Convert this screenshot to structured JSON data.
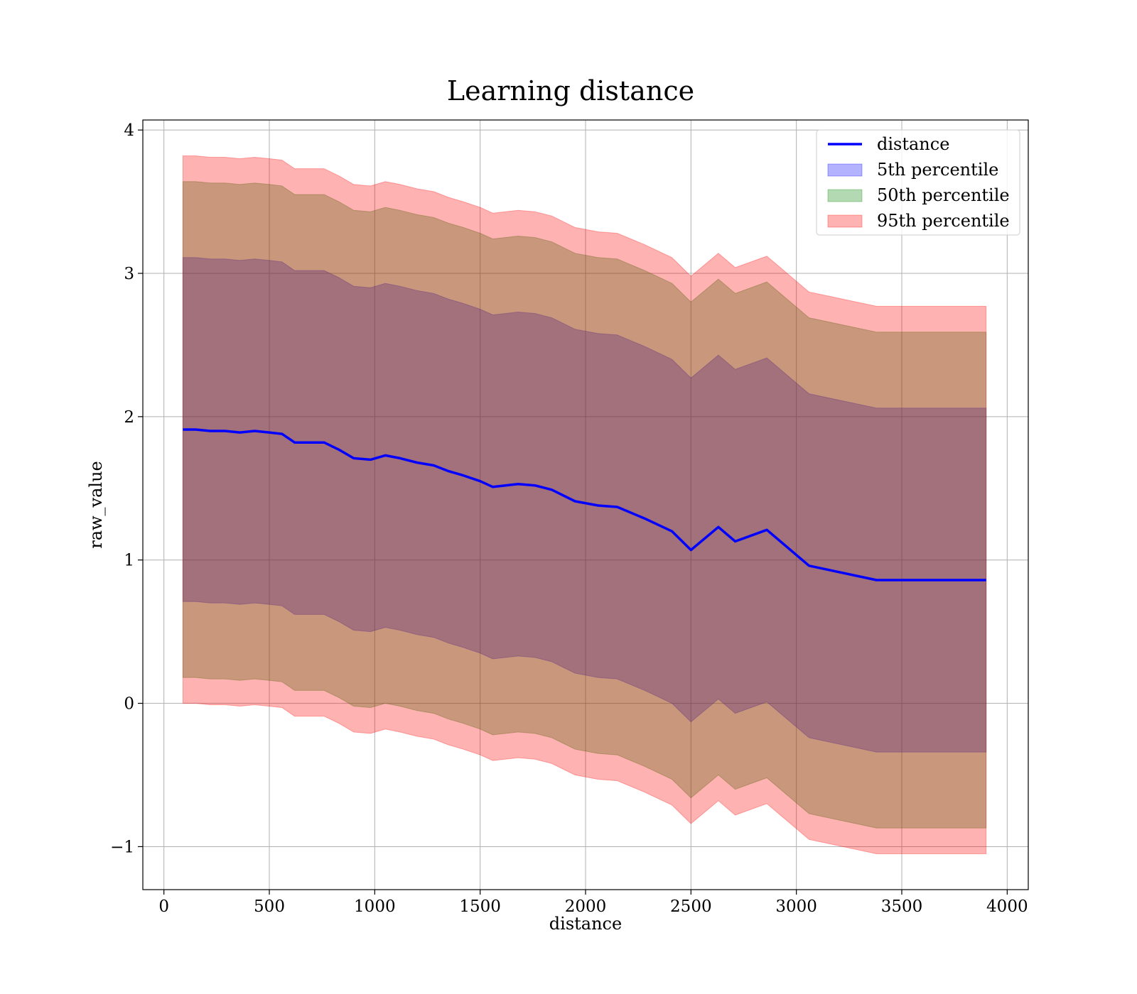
{
  "chart_data": {
    "type": "area",
    "title": "Learning distance",
    "xlabel": "distance",
    "ylabel": "raw_value",
    "xlim": [
      -100,
      4100
    ],
    "ylim": [
      -1.3,
      4.07
    ],
    "x_ticks": [
      0,
      500,
      1000,
      1500,
      2000,
      2500,
      3000,
      3500,
      4000
    ],
    "x_tick_labels": [
      "0",
      "500",
      "1000",
      "1500",
      "2000",
      "2500",
      "3000",
      "3500",
      "4000"
    ],
    "y_ticks": [
      -1,
      0,
      1,
      2,
      3,
      4
    ],
    "y_tick_labels": [
      "−1",
      "0",
      "1",
      "2",
      "3",
      "4"
    ],
    "grid": true,
    "legend_position": "top-right",
    "legend": [
      {
        "label": "distance",
        "kind": "line",
        "color": "#0000ff"
      },
      {
        "label": "5th percentile",
        "kind": "patch",
        "color": "#0000ff"
      },
      {
        "label": "50th percentile",
        "kind": "patch",
        "color": "#008000"
      },
      {
        "label": "95th percentile",
        "kind": "patch",
        "color": "#ff0000"
      }
    ],
    "x": [
      90,
      150,
      220,
      290,
      360,
      430,
      500,
      560,
      620,
      700,
      760,
      830,
      900,
      980,
      1050,
      1120,
      1200,
      1280,
      1350,
      1420,
      1500,
      1560,
      1680,
      1760,
      1840,
      1950,
      2060,
      2150,
      2280,
      2410,
      2500,
      2630,
      2710,
      2860,
      3060,
      3380,
      3900
    ],
    "series": [
      {
        "name": "distance",
        "kind": "line",
        "color": "#0000ff",
        "values": [
          1.91,
          1.91,
          1.9,
          1.9,
          1.89,
          1.9,
          1.89,
          1.88,
          1.82,
          1.82,
          1.82,
          1.77,
          1.71,
          1.7,
          1.73,
          1.71,
          1.68,
          1.66,
          1.62,
          1.59,
          1.55,
          1.51,
          1.53,
          1.52,
          1.49,
          1.41,
          1.38,
          1.37,
          1.29,
          1.2,
          1.07,
          1.23,
          1.13,
          1.21,
          0.96,
          0.86,
          0.86
        ]
      },
      {
        "name": "5th percentile",
        "kind": "band",
        "color": "#0000ff",
        "lower": [
          0.71,
          0.71,
          0.7,
          0.7,
          0.69,
          0.7,
          0.69,
          0.68,
          0.62,
          0.62,
          0.62,
          0.57,
          0.51,
          0.5,
          0.53,
          0.51,
          0.48,
          0.46,
          0.42,
          0.39,
          0.35,
          0.31,
          0.33,
          0.32,
          0.29,
          0.21,
          0.18,
          0.17,
          0.09,
          0.0,
          -0.13,
          0.03,
          -0.07,
          0.01,
          -0.24,
          -0.34,
          -0.34
        ],
        "upper": [
          3.11,
          3.11,
          3.1,
          3.1,
          3.09,
          3.1,
          3.09,
          3.08,
          3.02,
          3.02,
          3.02,
          2.97,
          2.91,
          2.9,
          2.93,
          2.91,
          2.88,
          2.86,
          2.82,
          2.79,
          2.75,
          2.71,
          2.73,
          2.72,
          2.69,
          2.61,
          2.58,
          2.57,
          2.49,
          2.4,
          2.27,
          2.43,
          2.33,
          2.41,
          2.16,
          2.06,
          2.06
        ]
      },
      {
        "name": "50th percentile",
        "kind": "band",
        "color": "#008000",
        "lower": [
          0.18,
          0.18,
          0.17,
          0.17,
          0.16,
          0.17,
          0.16,
          0.15,
          0.09,
          0.09,
          0.09,
          0.04,
          -0.02,
          -0.03,
          0.0,
          -0.02,
          -0.05,
          -0.07,
          -0.11,
          -0.14,
          -0.18,
          -0.22,
          -0.2,
          -0.21,
          -0.24,
          -0.32,
          -0.35,
          -0.36,
          -0.44,
          -0.53,
          -0.66,
          -0.5,
          -0.6,
          -0.52,
          -0.77,
          -0.87,
          -0.87
        ],
        "upper": [
          3.64,
          3.64,
          3.63,
          3.63,
          3.62,
          3.63,
          3.62,
          3.61,
          3.55,
          3.55,
          3.55,
          3.5,
          3.44,
          3.43,
          3.46,
          3.44,
          3.41,
          3.39,
          3.35,
          3.32,
          3.28,
          3.24,
          3.26,
          3.25,
          3.22,
          3.14,
          3.11,
          3.1,
          3.02,
          2.93,
          2.8,
          2.96,
          2.86,
          2.94,
          2.69,
          2.59,
          2.59
        ]
      },
      {
        "name": "95th percentile",
        "kind": "band",
        "color": "#ff0000",
        "lower": [
          0.0,
          0.0,
          -0.01,
          -0.01,
          -0.02,
          -0.01,
          -0.02,
          -0.03,
          -0.09,
          -0.09,
          -0.09,
          -0.14,
          -0.2,
          -0.21,
          -0.18,
          -0.2,
          -0.23,
          -0.25,
          -0.29,
          -0.32,
          -0.36,
          -0.4,
          -0.38,
          -0.39,
          -0.42,
          -0.5,
          -0.53,
          -0.54,
          -0.62,
          -0.71,
          -0.84,
          -0.68,
          -0.78,
          -0.7,
          -0.95,
          -1.05,
          -1.05
        ],
        "upper": [
          3.82,
          3.82,
          3.81,
          3.81,
          3.8,
          3.81,
          3.8,
          3.79,
          3.73,
          3.73,
          3.73,
          3.68,
          3.62,
          3.61,
          3.64,
          3.62,
          3.59,
          3.57,
          3.53,
          3.5,
          3.46,
          3.42,
          3.44,
          3.43,
          3.4,
          3.32,
          3.29,
          3.28,
          3.2,
          3.11,
          2.98,
          3.14,
          3.04,
          3.12,
          2.87,
          2.77,
          2.77
        ]
      }
    ]
  }
}
